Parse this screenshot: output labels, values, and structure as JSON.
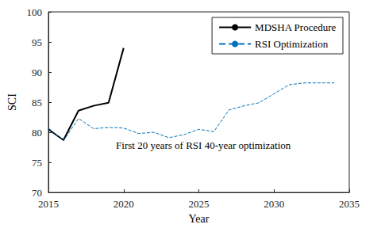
{
  "chart_data": {
    "type": "line",
    "x_label": "Year",
    "y_label": "SCI",
    "xlim": [
      2015,
      2035
    ],
    "xticks": [
      2015,
      2020,
      2025,
      2030,
      2035
    ],
    "ylim": [
      70,
      100
    ],
    "yticks": [
      70,
      75,
      80,
      85,
      90,
      95,
      100
    ],
    "grid": false,
    "legend": "top-right",
    "series": [
      {
        "name": "MDSHA Procedure",
        "color": "#000000",
        "line_style": "solid",
        "x": [
          2015,
          2016,
          2017,
          2018,
          2019,
          2020
        ],
        "values": [
          80.5,
          78.7,
          83.6,
          84.4,
          84.9,
          94.0
        ]
      },
      {
        "name": "RSI Optimization",
        "color": "#0072bd",
        "line_style": "dashed",
        "x": [
          2015,
          2016,
          2017,
          2018,
          2019,
          2020,
          2021,
          2022,
          2023,
          2024,
          2025,
          2026,
          2027,
          2028,
          2029,
          2030,
          2031,
          2032,
          2033,
          2034
        ],
        "values": [
          80.7,
          78.6,
          82.3,
          80.6,
          80.8,
          80.7,
          79.8,
          80.0,
          79.1,
          79.6,
          80.5,
          80.1,
          83.7,
          84.4,
          84.9,
          86.4,
          87.9,
          88.2,
          88.2,
          88.2
        ]
      }
    ],
    "annotations": [
      {
        "text": "First 20 years of RSI 40-year optimization",
        "x": 2025.3,
        "y": 77.8
      }
    ]
  }
}
